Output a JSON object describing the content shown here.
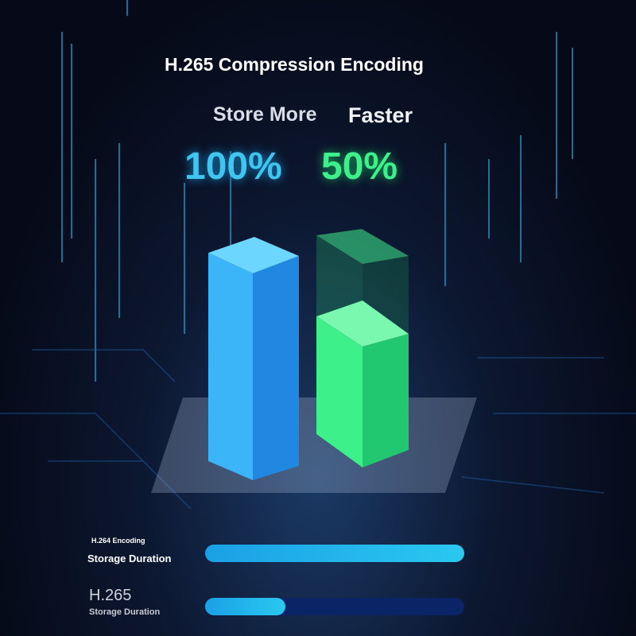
{
  "header": {
    "title": "H.265 Compression Encoding",
    "subtitle_left": "Store More",
    "subtitle_right": "Faster"
  },
  "stats": {
    "left": "100%",
    "right": "50%"
  },
  "colors": {
    "blue_bar": "#2aa8f0",
    "green_bar": "#3ef08a",
    "track": "#0b2466"
  },
  "comparison": [
    {
      "codec": "H.264 Encoding",
      "label": "Storage Duration",
      "fill_percent": 100
    },
    {
      "codec": "H.265",
      "label": "Storage Duration",
      "fill_percent": 31
    }
  ]
}
